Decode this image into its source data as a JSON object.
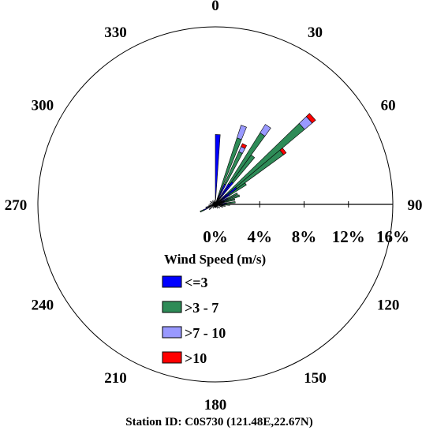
{
  "chart_data": {
    "type": "wind-rose",
    "title": "",
    "footer": "Station ID: C0S730 (121.48E,22.67N)",
    "direction_labels": [
      {
        "deg": 0,
        "label": "0"
      },
      {
        "deg": 30,
        "label": "30"
      },
      {
        "deg": 60,
        "label": "60"
      },
      {
        "deg": 90,
        "label": "90"
      },
      {
        "deg": 120,
        "label": "120"
      },
      {
        "deg": 150,
        "label": "150"
      },
      {
        "deg": 180,
        "label": "180"
      },
      {
        "deg": 210,
        "label": "210"
      },
      {
        "deg": 240,
        "label": "240"
      },
      {
        "deg": 270,
        "label": "270"
      },
      {
        "deg": 300,
        "label": "300"
      },
      {
        "deg": 330,
        "label": "330"
      }
    ],
    "radial_axis": {
      "unit": "%",
      "range": [
        0,
        16
      ],
      "ticks": [
        {
          "value": 0,
          "label": "0%"
        },
        {
          "value": 4,
          "label": "4%"
        },
        {
          "value": 8,
          "label": "8%"
        },
        {
          "value": 12,
          "label": "12%"
        },
        {
          "value": 16,
          "label": "16%"
        }
      ]
    },
    "legend": {
      "title": "Wind Speed (m/s)",
      "position": "bottom-center"
    },
    "series": [
      {
        "name": "<=3",
        "color": "#0000ff"
      },
      {
        "name": ">3 - 7",
        "color": "#2e8b57"
      },
      {
        "name": ">7 - 10",
        "color": "#9999ff"
      },
      {
        "name": ">10",
        "color": "#ff0000"
      }
    ],
    "sector_width_deg": 4,
    "sectors": [
      {
        "dir": 2,
        "values": [
          6.3,
          0,
          0,
          0
        ]
      },
      {
        "dir": 20,
        "values": [
          0.8,
          5.5,
          1.2,
          0
        ]
      },
      {
        "dir": 26,
        "values": [
          2.0,
          3.2,
          0.5,
          0.3
        ]
      },
      {
        "dir": 34,
        "values": [
          2.2,
          5.4,
          0.9,
          0
        ]
      },
      {
        "dir": 38,
        "values": [
          2.5,
          3.0,
          0,
          0
        ]
      },
      {
        "dir": 48,
        "values": [
          1.3,
          9.2,
          0.9,
          0.4
        ]
      },
      {
        "dir": 52,
        "values": [
          2.4,
          5.2,
          0,
          0.3
        ]
      },
      {
        "dir": 56,
        "values": [
          1.5,
          1.8,
          0,
          0
        ]
      },
      {
        "dir": 64,
        "values": [
          1.2,
          1.0,
          0,
          0
        ]
      },
      {
        "dir": 70,
        "values": [
          0.8,
          1.5,
          0,
          0
        ]
      },
      {
        "dir": 76,
        "values": [
          0.8,
          1.0,
          0,
          0
        ]
      },
      {
        "dir": 84,
        "values": [
          1.0,
          0.8,
          0,
          0
        ]
      },
      {
        "dir": 92,
        "values": [
          0.8,
          0.5,
          0,
          0
        ]
      },
      {
        "dir": 100,
        "values": [
          0.6,
          0.3,
          0,
          0
        ]
      },
      {
        "dir": 110,
        "values": [
          0.5,
          0.2,
          0,
          0
        ]
      },
      {
        "dir": 130,
        "values": [
          0.5,
          0,
          0,
          0
        ]
      },
      {
        "dir": 150,
        "values": [
          0.4,
          0,
          0,
          0
        ]
      },
      {
        "dir": 170,
        "values": [
          0.3,
          0,
          0,
          0
        ]
      },
      {
        "dir": 190,
        "values": [
          0.3,
          0,
          0,
          0
        ]
      },
      {
        "dir": 210,
        "values": [
          0.4,
          0,
          0,
          0
        ]
      },
      {
        "dir": 230,
        "values": [
          0.7,
          0,
          0,
          0
        ]
      },
      {
        "dir": 244,
        "values": [
          1.2,
          0.3,
          0,
          0
        ]
      },
      {
        "dir": 252,
        "values": [
          0.9,
          0,
          0,
          0
        ]
      },
      {
        "dir": 262,
        "values": [
          0.6,
          0,
          0,
          0
        ]
      },
      {
        "dir": 280,
        "values": [
          0.5,
          0,
          0,
          0
        ]
      },
      {
        "dir": 300,
        "values": [
          0.5,
          0,
          0,
          0
        ]
      },
      {
        "dir": 320,
        "values": [
          0.4,
          0,
          0,
          0
        ]
      },
      {
        "dir": 340,
        "values": [
          0.4,
          0,
          0,
          0
        ]
      }
    ]
  }
}
